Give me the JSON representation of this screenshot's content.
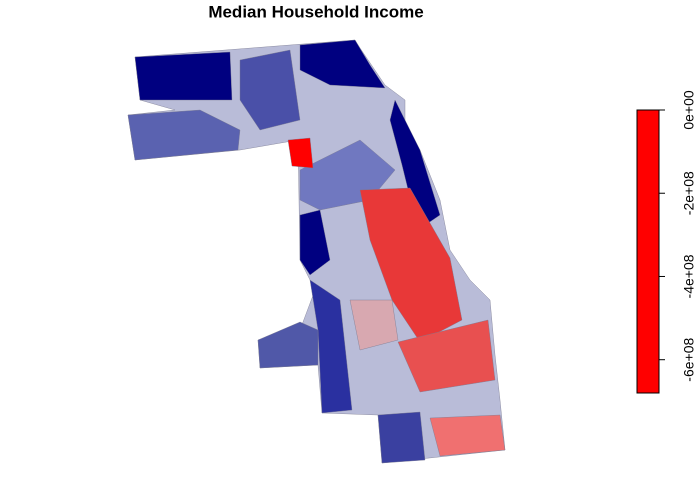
{
  "chart_data": {
    "type": "map",
    "title": "Median Household Income",
    "colorbar": {
      "lim": [
        -680000000,
        0
      ],
      "color": "#ff0000",
      "ticks": [
        {
          "value": 0,
          "label": "0e+00"
        },
        {
          "value": -200000000,
          "label": "-2e+08"
        },
        {
          "value": -400000000,
          "label": "-4e+08"
        },
        {
          "value": -600000000,
          "label": "-6e+08"
        }
      ]
    }
  }
}
